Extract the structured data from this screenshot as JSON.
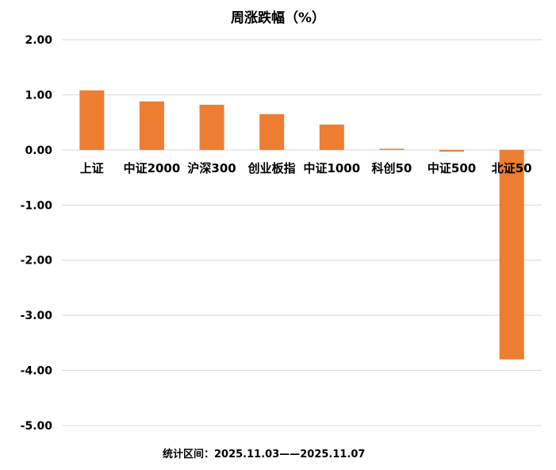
{
  "chart_data": {
    "type": "bar",
    "title": "周涨跌幅（%）",
    "categories": [
      "上证",
      "中证2000",
      "沪深300",
      "创业板指",
      "中证1000",
      "科创50",
      "中证500",
      "北证50"
    ],
    "values": [
      1.08,
      0.88,
      0.82,
      0.65,
      0.46,
      0.02,
      -0.03,
      -3.8
    ],
    "yticks": [
      "2.00",
      "1.00",
      "0.00",
      "-1.00",
      "-2.00",
      "-3.00",
      "-4.00",
      "-5.00"
    ],
    "ylim": [
      -5,
      2
    ],
    "grid": true,
    "bar_color": "#ED7D31",
    "xlabel": "",
    "ylabel": ""
  },
  "footnote": "统计区间：2025.11.03——2025.11.07"
}
